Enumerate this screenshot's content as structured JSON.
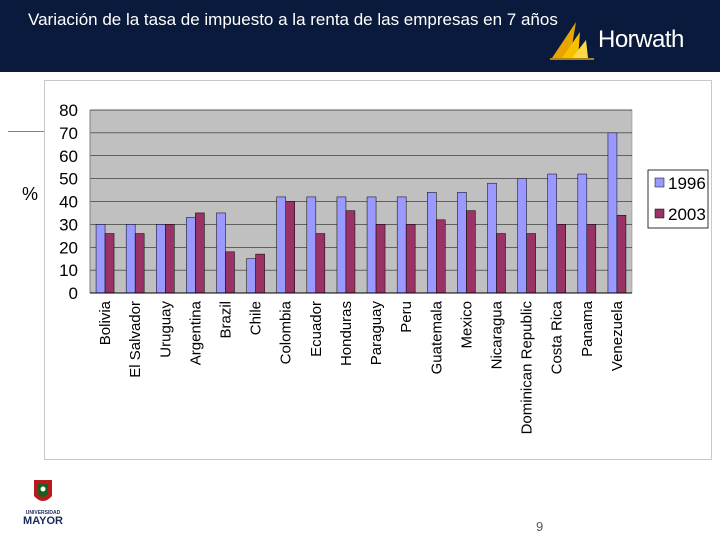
{
  "slide": {
    "title": "Variación de la tasa de impuesto a la renta de las empresas en 7 años",
    "unit_label": "%",
    "brand": "Horwath",
    "page_number": "9",
    "university_line1": "UNIVERSIDAD",
    "university_line2": "MAYOR"
  },
  "colors": {
    "header_bg": "#0a1a3c",
    "plot_bg": "#c0c0c0",
    "series_1996": "#9999ff",
    "series_2003": "#993366"
  },
  "chart_data": {
    "type": "bar",
    "title": "",
    "xlabel": "",
    "ylabel": "%",
    "ylim": [
      0,
      80
    ],
    "yticks": [
      0,
      10,
      20,
      30,
      40,
      50,
      60,
      70,
      80
    ],
    "grid": true,
    "legend_position": "right",
    "categories": [
      "Bolivia",
      "El Salvador",
      "Uruguay",
      "Argentina",
      "Brazil",
      "Chile",
      "Colombia",
      "Ecuador",
      "Honduras",
      "Paraguay",
      "Peru",
      "Guatemala",
      "Mexico",
      "Nicaragua",
      "Dominican Republic",
      "Costa Rica",
      "Panama",
      "Venezuela"
    ],
    "series": [
      {
        "name": "1996",
        "values": [
          30,
          30,
          30,
          33,
          35,
          15,
          42,
          42,
          42,
          42,
          42,
          44,
          44,
          48,
          50,
          52,
          52,
          70
        ]
      },
      {
        "name": "2003",
        "values": [
          26,
          26,
          30,
          35,
          18,
          17,
          40,
          26,
          36,
          30,
          30,
          32,
          36,
          26,
          26,
          30,
          30,
          34
        ]
      }
    ]
  }
}
